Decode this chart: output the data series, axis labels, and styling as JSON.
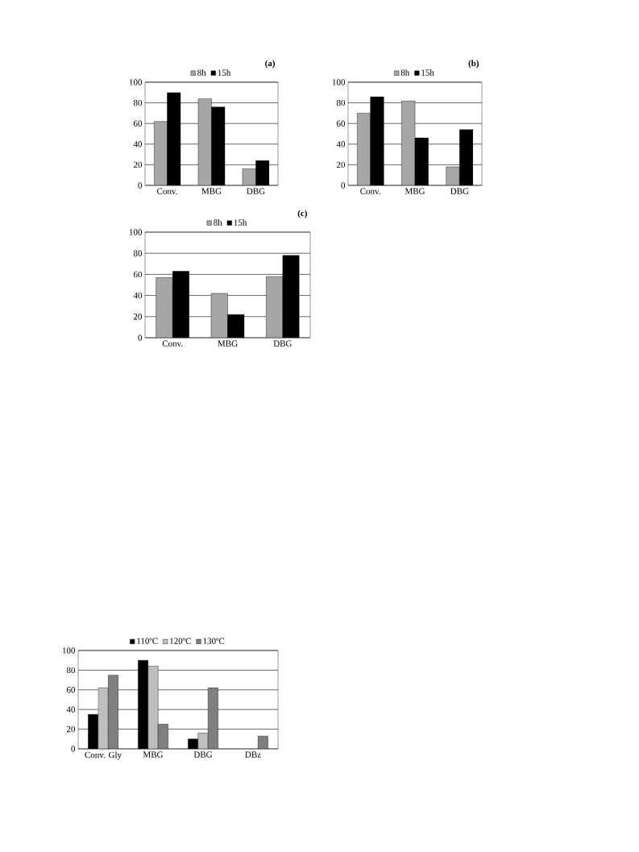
{
  "chart_data": [
    {
      "type": "bar",
      "title": "(a)",
      "categories": [
        "Conv.",
        "MBG",
        "DBG"
      ],
      "series": [
        {
          "name": "8h",
          "color": "#a6a6a6",
          "values": [
            62,
            84,
            16
          ]
        },
        {
          "name": "15h",
          "color": "#000000",
          "values": [
            90,
            76,
            24
          ]
        }
      ],
      "ylim": [
        0,
        100
      ],
      "yticks": [
        0,
        20,
        40,
        60,
        80,
        100
      ],
      "grid": "y",
      "legend": "top"
    },
    {
      "type": "bar",
      "title": "(b)",
      "categories": [
        "Conv.",
        "MBG",
        "DBG"
      ],
      "series": [
        {
          "name": "8h",
          "color": "#a6a6a6",
          "values": [
            70,
            82,
            18
          ]
        },
        {
          "name": "15h",
          "color": "#000000",
          "values": [
            86,
            46,
            54
          ]
        }
      ],
      "ylim": [
        0,
        100
      ],
      "yticks": [
        0,
        20,
        40,
        60,
        80,
        100
      ],
      "grid": "y",
      "legend": "top"
    },
    {
      "type": "bar",
      "title": "(c)",
      "categories": [
        "Conv.",
        "MBG",
        "DBG"
      ],
      "series": [
        {
          "name": "8h",
          "color": "#a6a6a6",
          "values": [
            57,
            42,
            58
          ]
        },
        {
          "name": "15h",
          "color": "#000000",
          "values": [
            63,
            22,
            78
          ]
        }
      ],
      "ylim": [
        0,
        100
      ],
      "yticks": [
        0,
        20,
        40,
        60,
        80,
        100
      ],
      "grid": "y",
      "legend": "top"
    },
    {
      "type": "bar",
      "categories": [
        "Conv. Gly",
        "MBG",
        "DBG",
        "DBz"
      ],
      "series": [
        {
          "name": "110ºC",
          "color": "#000000",
          "values": [
            35,
            90,
            10,
            null
          ]
        },
        {
          "name": "120ºC",
          "color": "#bfbfbf",
          "values": [
            62,
            84,
            16,
            null
          ]
        },
        {
          "name": "130ºC",
          "color": "#7f7f7f",
          "values": [
            75,
            25,
            62,
            13
          ]
        }
      ],
      "ylim": [
        0,
        100
      ],
      "yticks": [
        0,
        20,
        40,
        60,
        80,
        100
      ],
      "grid": "y",
      "legend": "top"
    }
  ]
}
